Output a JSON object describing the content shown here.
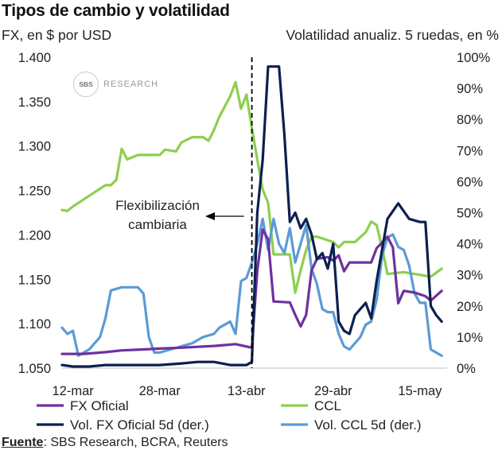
{
  "title": "Tipos de cambio y volatilidad",
  "left_axis_title": "FX, en $ por USD",
  "right_axis_title": "Volatilidad anualiz. 5 ruedas, en %",
  "logo": {
    "mark": "SBS",
    "text": "RESEARCH"
  },
  "annotation": {
    "line1": "Flexibilización",
    "line2": "cambiaria"
  },
  "source": {
    "label": "Fuente",
    "text": ": SBS Research, BCRA, Reuters"
  },
  "colors": {
    "fx_oficial": "#7030a0",
    "ccl": "#8dcf4f",
    "vol_fx": "#0c1f4f",
    "vol_ccl": "#5b9bd5"
  },
  "chart_data": {
    "type": "line",
    "x_axis": {
      "type": "date",
      "start": "2025-03-10",
      "end": "2025-05-20",
      "tick_labels": [
        "12-mar",
        "28-mar",
        "13-abr",
        "29-abr",
        "15-may"
      ],
      "tick_dates": [
        "2025-03-12",
        "2025-03-28",
        "2025-04-13",
        "2025-04-29",
        "2025-05-15"
      ]
    },
    "y_left": {
      "min": 1.05,
      "max": 1.4,
      "tick_labels": [
        "1.400",
        "1.350",
        "1.300",
        "1.250",
        "1.200",
        "1.150",
        "1.100",
        "1.050"
      ],
      "ticks": [
        1.4,
        1.35,
        1.3,
        1.25,
        1.2,
        1.15,
        1.1,
        1.05
      ]
    },
    "y_right": {
      "min": 0,
      "max": 100,
      "tick_labels": [
        "100%",
        "90%",
        "80%",
        "70%",
        "60%",
        "50%",
        "40%",
        "30%",
        "20%",
        "10%",
        "0%"
      ],
      "ticks": [
        100,
        90,
        80,
        70,
        60,
        50,
        40,
        30,
        20,
        10,
        0
      ]
    },
    "grid": false,
    "legend_position": "bottom",
    "event_line": {
      "date": "2025-04-14",
      "label": "Flexibilización cambiaria"
    },
    "series": [
      {
        "name": "FX Oficial",
        "axis": "left",
        "color_key": "fx_oficial",
        "points": [
          [
            "2025-03-10",
            1.066
          ],
          [
            "2025-03-14",
            1.066
          ],
          [
            "2025-03-18",
            1.068
          ],
          [
            "2025-03-21",
            1.07
          ],
          [
            "2025-03-25",
            1.071
          ],
          [
            "2025-03-28",
            1.072
          ],
          [
            "2025-04-01",
            1.073
          ],
          [
            "2025-04-04",
            1.074
          ],
          [
            "2025-04-07",
            1.075
          ],
          [
            "2025-04-09",
            1.076
          ],
          [
            "2025-04-11",
            1.077
          ],
          [
            "2025-04-14",
            1.073
          ],
          [
            "2025-04-15",
            1.16
          ],
          [
            "2025-04-16",
            1.206
          ],
          [
            "2025-04-17",
            1.195
          ],
          [
            "2025-04-18",
            1.125
          ],
          [
            "2025-04-21",
            1.124
          ],
          [
            "2025-04-22",
            1.11
          ],
          [
            "2025-04-23",
            1.097
          ],
          [
            "2025-04-24",
            1.11
          ],
          [
            "2025-04-25",
            1.16
          ],
          [
            "2025-04-26",
            1.173
          ],
          [
            "2025-04-28",
            1.175
          ],
          [
            "2025-04-29",
            1.171
          ],
          [
            "2025-04-30",
            1.177
          ],
          [
            "2025-05-01",
            1.159
          ],
          [
            "2025-05-02",
            1.169
          ],
          [
            "2025-05-04",
            1.169
          ],
          [
            "2025-05-06",
            1.169
          ],
          [
            "2025-05-07",
            1.185
          ],
          [
            "2025-05-09",
            1.198
          ],
          [
            "2025-05-10",
            1.186
          ],
          [
            "2025-05-11",
            1.123
          ],
          [
            "2025-05-12",
            1.137
          ],
          [
            "2025-05-14",
            1.135
          ],
          [
            "2025-05-16",
            1.131
          ],
          [
            "2025-05-17",
            1.126
          ],
          [
            "2025-05-19",
            1.137
          ]
        ]
      },
      {
        "name": "CCL",
        "axis": "left",
        "color_key": "ccl",
        "points": [
          [
            "2025-03-10",
            1.228
          ],
          [
            "2025-03-11",
            1.227
          ],
          [
            "2025-03-12",
            1.232
          ],
          [
            "2025-03-14",
            1.24
          ],
          [
            "2025-03-16",
            1.248
          ],
          [
            "2025-03-18",
            1.256
          ],
          [
            "2025-03-19",
            1.256
          ],
          [
            "2025-03-20",
            1.262
          ],
          [
            "2025-03-21",
            1.297
          ],
          [
            "2025-03-22",
            1.285
          ],
          [
            "2025-03-24",
            1.29
          ],
          [
            "2025-03-26",
            1.29
          ],
          [
            "2025-03-28",
            1.29
          ],
          [
            "2025-03-29",
            1.296
          ],
          [
            "2025-03-31",
            1.294
          ],
          [
            "2025-04-01",
            1.304
          ],
          [
            "2025-04-03",
            1.31
          ],
          [
            "2025-04-05",
            1.31
          ],
          [
            "2025-04-06",
            1.306
          ],
          [
            "2025-04-07",
            1.318
          ],
          [
            "2025-04-08",
            1.333
          ],
          [
            "2025-04-10",
            1.356
          ],
          [
            "2025-04-11",
            1.372
          ],
          [
            "2025-04-12",
            1.342
          ],
          [
            "2025-04-13",
            1.358
          ],
          [
            "2025-04-14",
            1.32
          ],
          [
            "2025-04-15",
            1.285
          ],
          [
            "2025-04-16",
            1.251
          ],
          [
            "2025-04-17",
            1.236
          ],
          [
            "2025-04-18",
            1.178
          ],
          [
            "2025-04-21",
            1.178
          ],
          [
            "2025-04-22",
            1.135
          ],
          [
            "2025-04-23",
            1.16
          ],
          [
            "2025-04-24",
            1.183
          ],
          [
            "2025-04-25",
            1.198
          ],
          [
            "2025-04-26",
            1.198
          ],
          [
            "2025-04-28",
            1.194
          ],
          [
            "2025-04-29",
            1.192
          ],
          [
            "2025-04-30",
            1.186
          ],
          [
            "2025-05-01",
            1.192
          ],
          [
            "2025-05-03",
            1.192
          ],
          [
            "2025-05-05",
            1.203
          ],
          [
            "2025-05-06",
            1.215
          ],
          [
            "2025-05-07",
            1.211
          ],
          [
            "2025-05-08",
            1.186
          ],
          [
            "2025-05-09",
            1.156
          ],
          [
            "2025-05-12",
            1.158
          ],
          [
            "2025-05-15",
            1.155
          ],
          [
            "2025-05-17",
            1.153
          ],
          [
            "2025-05-19",
            1.162
          ]
        ]
      },
      {
        "name": "Vol. FX Oficial 5d (der.)",
        "axis": "right",
        "color_key": "vol_fx",
        "points": [
          [
            "2025-03-10",
            1
          ],
          [
            "2025-03-12",
            0.5
          ],
          [
            "2025-03-15",
            0.5
          ],
          [
            "2025-03-18",
            1
          ],
          [
            "2025-03-24",
            1
          ],
          [
            "2025-03-28",
            1
          ],
          [
            "2025-04-01",
            1.5
          ],
          [
            "2025-04-04",
            2
          ],
          [
            "2025-04-07",
            2
          ],
          [
            "2025-04-10",
            1
          ],
          [
            "2025-04-13",
            1
          ],
          [
            "2025-04-14",
            2
          ],
          [
            "2025-04-15",
            50
          ],
          [
            "2025-04-16",
            67
          ],
          [
            "2025-04-17",
            97
          ],
          [
            "2025-04-19",
            97
          ],
          [
            "2025-04-20",
            75
          ],
          [
            "2025-04-21",
            47
          ],
          [
            "2025-04-22",
            50
          ],
          [
            "2025-04-23",
            45
          ],
          [
            "2025-04-24",
            48
          ],
          [
            "2025-04-25",
            43
          ],
          [
            "2025-04-26",
            35
          ],
          [
            "2025-04-27",
            37
          ],
          [
            "2025-04-28",
            32
          ],
          [
            "2025-04-29",
            40
          ],
          [
            "2025-04-30",
            15
          ],
          [
            "2025-05-01",
            12
          ],
          [
            "2025-05-02",
            11
          ],
          [
            "2025-05-03",
            17
          ],
          [
            "2025-05-05",
            21
          ],
          [
            "2025-05-06",
            16
          ],
          [
            "2025-05-07",
            28
          ],
          [
            "2025-05-09",
            48
          ],
          [
            "2025-05-11",
            53
          ],
          [
            "2025-05-13",
            48
          ],
          [
            "2025-05-15",
            47
          ],
          [
            "2025-05-16",
            47
          ],
          [
            "2025-05-17",
            20
          ],
          [
            "2025-05-18",
            17
          ],
          [
            "2025-05-19",
            15
          ]
        ]
      },
      {
        "name": "Vol. CCL 5d (der.)",
        "axis": "right",
        "color_key": "vol_ccl",
        "points": [
          [
            "2025-03-10",
            13
          ],
          [
            "2025-03-11",
            11
          ],
          [
            "2025-03-12",
            12
          ],
          [
            "2025-03-13",
            4
          ],
          [
            "2025-03-14",
            5
          ],
          [
            "2025-03-15",
            6
          ],
          [
            "2025-03-17",
            10
          ],
          [
            "2025-03-18",
            16
          ],
          [
            "2025-03-19",
            25
          ],
          [
            "2025-03-21",
            26
          ],
          [
            "2025-03-24",
            26
          ],
          [
            "2025-03-25",
            24
          ],
          [
            "2025-03-26",
            10
          ],
          [
            "2025-03-27",
            5
          ],
          [
            "2025-03-28",
            5
          ],
          [
            "2025-03-30",
            6
          ],
          [
            "2025-04-01",
            7
          ],
          [
            "2025-04-03",
            8
          ],
          [
            "2025-04-05",
            10
          ],
          [
            "2025-04-07",
            11
          ],
          [
            "2025-04-08",
            13
          ],
          [
            "2025-04-09",
            14
          ],
          [
            "2025-04-10",
            15
          ],
          [
            "2025-04-11",
            11
          ],
          [
            "2025-04-12",
            28
          ],
          [
            "2025-04-13",
            29
          ],
          [
            "2025-04-14",
            34
          ],
          [
            "2025-04-15",
            40
          ],
          [
            "2025-04-16",
            48
          ],
          [
            "2025-04-17",
            38
          ],
          [
            "2025-04-18",
            48
          ],
          [
            "2025-04-19",
            40
          ],
          [
            "2025-04-20",
            37
          ],
          [
            "2025-04-21",
            45
          ],
          [
            "2025-04-22",
            34
          ],
          [
            "2025-04-23",
            40
          ],
          [
            "2025-04-24",
            46
          ],
          [
            "2025-04-25",
            32
          ],
          [
            "2025-04-26",
            27
          ],
          [
            "2025-04-27",
            19
          ],
          [
            "2025-04-28",
            18
          ],
          [
            "2025-04-29",
            18
          ],
          [
            "2025-04-30",
            11
          ],
          [
            "2025-05-01",
            7
          ],
          [
            "2025-05-02",
            6
          ],
          [
            "2025-05-03",
            8
          ],
          [
            "2025-05-04",
            10
          ],
          [
            "2025-05-05",
            14
          ],
          [
            "2025-05-06",
            15
          ],
          [
            "2025-05-07",
            22
          ],
          [
            "2025-05-08",
            36
          ],
          [
            "2025-05-09",
            42
          ],
          [
            "2025-05-10",
            43
          ],
          [
            "2025-05-11",
            39
          ],
          [
            "2025-05-12",
            38
          ],
          [
            "2025-05-13",
            33
          ],
          [
            "2025-05-14",
            24
          ],
          [
            "2025-05-15",
            21
          ],
          [
            "2025-05-16",
            21
          ],
          [
            "2025-05-17",
            6
          ],
          [
            "2025-05-19",
            4
          ]
        ]
      }
    ]
  }
}
